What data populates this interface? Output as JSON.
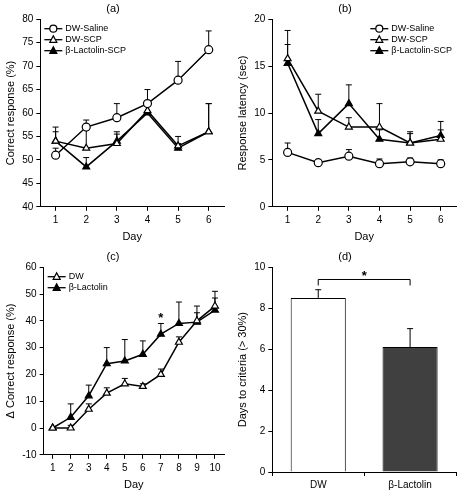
{
  "chart_data": [
    {
      "type": "line",
      "title": "(a)",
      "x_label": "Day",
      "y_label": "Correct response (%)",
      "x": [
        1,
        2,
        3,
        4,
        5,
        6
      ],
      "xlim": [
        0.5,
        6.5
      ],
      "xticks": [
        1,
        2,
        3,
        4,
        5,
        6
      ],
      "ylim": [
        40,
        80
      ],
      "yticks": [
        40,
        45,
        50,
        55,
        60,
        65,
        70,
        75,
        80
      ],
      "grid": false,
      "legend": "upper left",
      "series": [
        {
          "name": "DW-Saline",
          "color": "#000000",
          "marker": "circle-open",
          "values": [
            51,
            57,
            59,
            62,
            67,
            73.5
          ],
          "errors": [
            1.5,
            1.5,
            3,
            3,
            4,
            4
          ]
        },
        {
          "name": "DW-SCP",
          "color": "#000000",
          "marker": "triangle-open",
          "values": [
            54,
            52.5,
            53.5,
            60.5,
            53,
            56
          ],
          "errors": [
            2,
            4,
            2,
            2,
            2,
            6
          ]
        },
        {
          "name": "β-Lactolin-SCP",
          "color": "#000000",
          "marker": "triangle",
          "values": [
            54,
            48.5,
            54,
            60,
            52.5,
            56
          ],
          "errors": [
            3,
            2,
            2,
            2,
            1,
            6
          ]
        }
      ]
    },
    {
      "type": "line",
      "title": "(b)",
      "x_label": "Day",
      "y_label": "Response latency (sec)",
      "x": [
        1,
        2,
        3,
        4,
        5,
        6
      ],
      "xlim": [
        0.5,
        6.5
      ],
      "xticks": [
        1,
        2,
        3,
        4,
        5,
        6
      ],
      "ylim": [
        0,
        20
      ],
      "yticks": [
        0,
        5,
        10,
        15,
        20
      ],
      "grid": false,
      "legend": "upper right",
      "series": [
        {
          "name": "DW-Saline",
          "color": "#000000",
          "marker": "circle-open",
          "values": [
            5.8,
            4.7,
            5.4,
            4.6,
            4.8,
            4.6
          ],
          "errors": [
            1,
            0.3,
            0.7,
            0.5,
            0.4,
            0.4
          ]
        },
        {
          "name": "DW-SCP",
          "color": "#000000",
          "marker": "triangle-open",
          "values": [
            15.8,
            10.2,
            8.5,
            8.5,
            6.8,
            7.2
          ],
          "errors": [
            3,
            1.8,
            1,
            2.5,
            1.2,
            1
          ]
        },
        {
          "name": "β-Lactolin-SCP",
          "color": "#000000",
          "marker": "triangle",
          "values": [
            15.3,
            7.8,
            11,
            7.2,
            6.8,
            7.6
          ],
          "errors": [
            2,
            1.5,
            2,
            1,
            1,
            1.5
          ]
        }
      ]
    },
    {
      "type": "line",
      "title": "(c)",
      "x_label": "Day",
      "y_label": "Δ Correct response (%)",
      "x": [
        1,
        2,
        3,
        4,
        5,
        6,
        7,
        8,
        9,
        10
      ],
      "xlim": [
        0.5,
        10.5
      ],
      "xticks": [
        1,
        2,
        3,
        4,
        5,
        6,
        7,
        8,
        9,
        10
      ],
      "ylim": [
        -10,
        60
      ],
      "yticks": [
        -10,
        0,
        10,
        20,
        30,
        40,
        50,
        60
      ],
      "grid": false,
      "legend": "upper left",
      "series": [
        {
          "name": "DW",
          "color": "#000000",
          "marker": "triangle-open",
          "values": [
            0,
            0,
            7,
            13,
            16.5,
            15.5,
            20,
            32,
            40,
            45.5
          ],
          "errors": [
            0,
            1,
            2,
            2,
            2,
            1,
            2,
            2,
            3,
            3
          ]
        },
        {
          "name": "β-Lactolin",
          "color": "#000000",
          "marker": "triangle",
          "values": [
            0,
            4,
            12,
            24,
            25,
            27.5,
            35,
            39,
            39.5,
            44
          ],
          "errors": [
            0,
            5,
            4,
            6,
            8,
            5,
            4,
            8,
            6,
            7
          ]
        }
      ],
      "annotations": [
        {
          "text": "*",
          "x": 7,
          "y": 40
        }
      ]
    },
    {
      "type": "bar",
      "title": "(d)",
      "y_label": "Days to criteria (> 30%)",
      "categories": [
        "DW",
        "β-Lactolin"
      ],
      "values": [
        8.5,
        6.1
      ],
      "errors": [
        0.4,
        0.9
      ],
      "colors": [
        "#ffffff",
        "#404040"
      ],
      "ylim": [
        0,
        10
      ],
      "yticks": [
        0,
        2,
        4,
        6,
        8,
        10
      ],
      "grid": false,
      "annotations": [
        {
          "text": "*",
          "from": "DW",
          "to": "β-Lactolin",
          "y": 9.4
        }
      ]
    }
  ]
}
